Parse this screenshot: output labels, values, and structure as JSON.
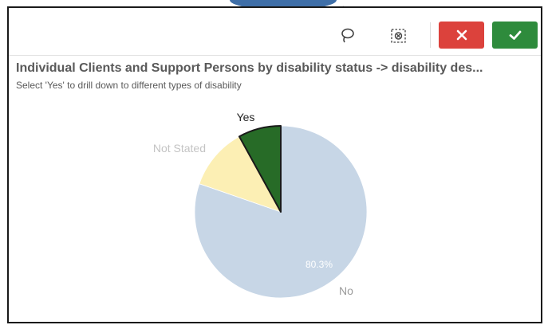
{
  "toolbar": {
    "lasso_icon": "lasso-icon",
    "clear_selection_icon": "clear-selection-icon",
    "cancel_icon": "close-icon",
    "confirm_icon": "checkmark-icon"
  },
  "colors": {
    "cancel": "#dc423c",
    "confirm": "#2e8b3c",
    "slice_no": "#c7d6e6",
    "slice_not_stated": "#fcefb4",
    "slice_yes": "#276b27"
  },
  "chart_data": {
    "type": "pie",
    "title": "Individual Clients and Support Persons by disability status -> disability des...",
    "subtitle": "Select 'Yes' to drill down to different types of disability",
    "slices": [
      {
        "label": "No",
        "value": 80.3,
        "value_label": "80.3%",
        "color": "#c7d6e6"
      },
      {
        "label": "Not Stated",
        "value": 11.7,
        "color": "#fcefb4"
      },
      {
        "label": "Yes",
        "value": 8.0,
        "color": "#276b27"
      }
    ],
    "selected": "Yes"
  }
}
